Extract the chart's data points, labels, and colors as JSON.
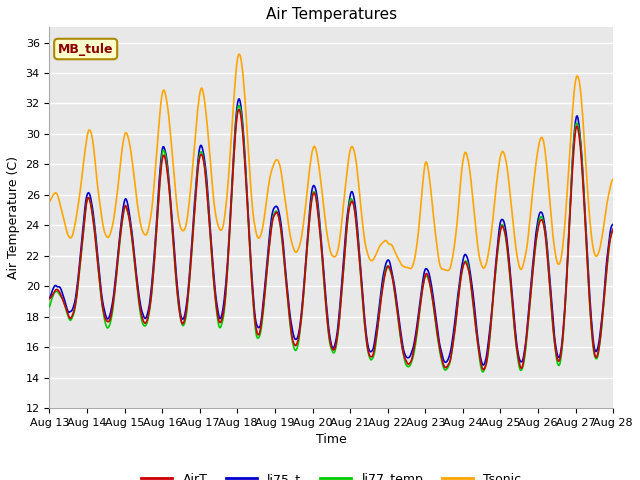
{
  "title": "Air Temperatures",
  "ylabel": "Air Temperature (C)",
  "xlabel": "Time",
  "ylim": [
    12,
    37
  ],
  "yticks": [
    12,
    14,
    16,
    18,
    20,
    22,
    24,
    26,
    28,
    30,
    32,
    34,
    36
  ],
  "xtick_labels": [
    "Aug 13",
    "Aug 14",
    "Aug 15",
    "Aug 16",
    "Aug 17",
    "Aug 18",
    "Aug 19",
    "Aug 20",
    "Aug 21",
    "Aug 22",
    "Aug 23",
    "Aug 24",
    "Aug 25",
    "Aug 26",
    "Aug 27",
    "Aug 28"
  ],
  "colors": {
    "AirT": "#cc0000",
    "li75_t": "#0000cc",
    "li77_temp": "#00cc00",
    "Tsonic": "#ffa500"
  },
  "legend_label": "MB_tule",
  "fig_bg": "#ffffff",
  "plot_bg": "#e8e8e8",
  "grid_color": "#ffffff",
  "linewidth": 1.2,
  "title_fontsize": 11,
  "label_fontsize": 9,
  "tick_fontsize": 8,
  "legend_fontsize": 9
}
